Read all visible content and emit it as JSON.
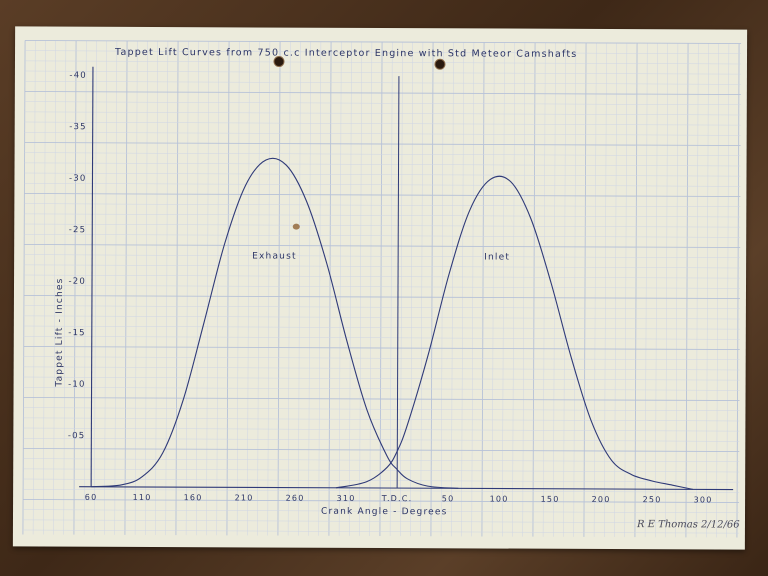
{
  "chart_data": {
    "type": "line",
    "title": "Tappet Lift Curves from 750 c.c Interceptor Engine with Std Meteor Camshafts",
    "xlabel": "Crank Angle - Degrees",
    "ylabel": "Tappet Lift - Inches",
    "x_tick_labels": [
      "60",
      "110",
      "160",
      "210",
      "260",
      "310",
      "T.D.C.",
      "50",
      "100",
      "150",
      "200",
      "250",
      "300"
    ],
    "y_tick_labels": [
      "-05",
      "-10",
      "-15",
      "-20",
      "-25",
      "-30",
      "-35",
      "-40"
    ],
    "y_ticks": [
      0.05,
      0.1,
      0.15,
      0.2,
      0.25,
      0.3,
      0.35,
      0.4
    ],
    "xlim": [
      -300,
      300
    ],
    "ylim": [
      0,
      0.4
    ],
    "grid": true,
    "x_axis_note": "degrees measured from T.D.C.; left side shown as 60..310 before T.D.C., right side 50..300 after",
    "series": [
      {
        "name": "Exhaust",
        "color": "#2f3a78",
        "x": [
          -300,
          -270,
          -250,
          -230,
          -210,
          -190,
          -170,
          -150,
          -130,
          -110,
          -90,
          -70,
          -50,
          -30,
          -10,
          0,
          10,
          30,
          60
        ],
        "y": [
          0.0,
          0.002,
          0.01,
          0.033,
          0.085,
          0.16,
          0.237,
          0.293,
          0.318,
          0.313,
          0.278,
          0.218,
          0.143,
          0.076,
          0.031,
          0.018,
          0.009,
          0.002,
          0.0
        ]
      },
      {
        "name": "Inlet",
        "color": "#2f3a78",
        "x": [
          -60,
          -30,
          -10,
          0,
          10,
          30,
          50,
          70,
          90,
          110,
          130,
          150,
          170,
          190,
          210,
          230,
          250,
          270,
          290
        ],
        "y": [
          0.0,
          0.006,
          0.02,
          0.036,
          0.062,
          0.13,
          0.208,
          0.27,
          0.3,
          0.298,
          0.262,
          0.2,
          0.128,
          0.066,
          0.028,
          0.014,
          0.008,
          0.004,
          0.0
        ]
      }
    ]
  },
  "signature": {
    "text": "R E Thomas 2/12/66"
  },
  "colors": {
    "ink": "#2f3a78",
    "paper": "#ecebdc",
    "grid_minor": "#cfd6e4",
    "grid_major": "#b7c2d8"
  }
}
